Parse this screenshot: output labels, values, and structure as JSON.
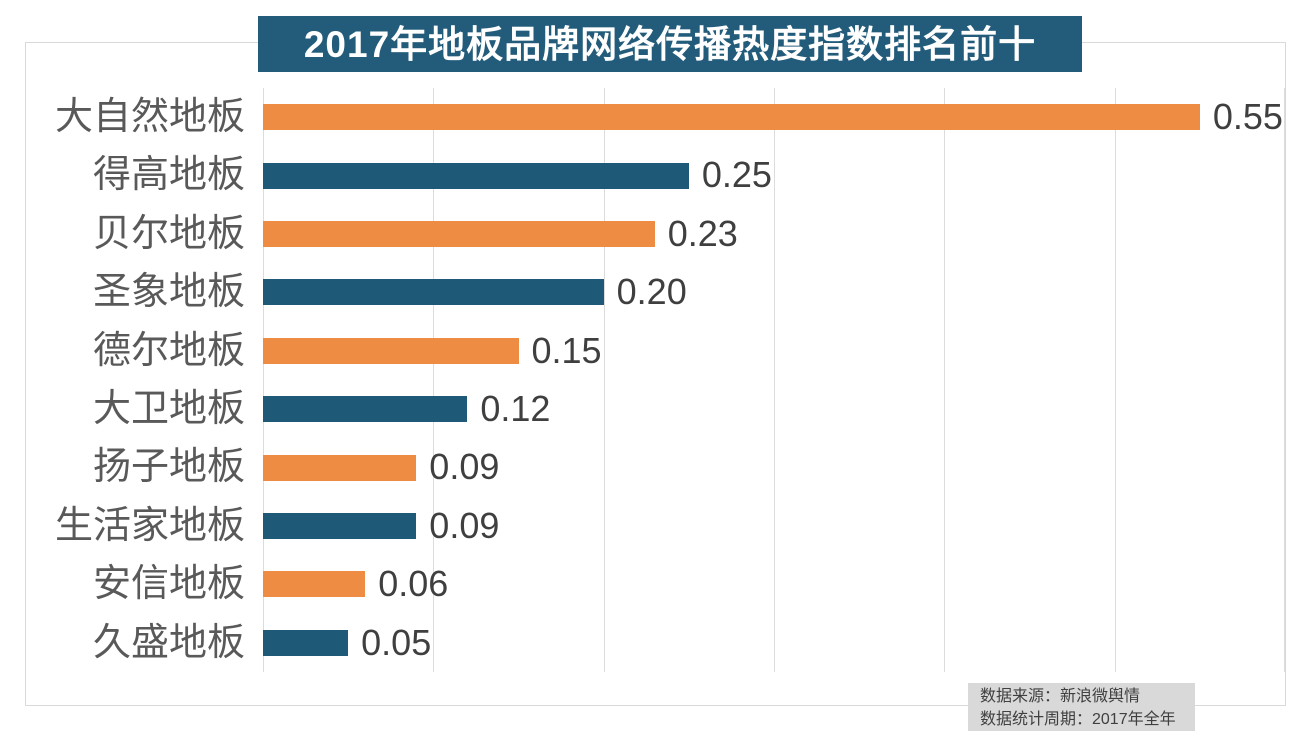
{
  "title": {
    "text": "2017年地板品牌网络传播热度指数排名前十",
    "bg_color": "#235c7b",
    "text_color": "#ffffff"
  },
  "source": {
    "line1": "数据来源：新浪微舆情",
    "line2": "数据统计周期：2017年全年",
    "bg_color": "#d9d9d9",
    "text_color": "#404040"
  },
  "colors": {
    "bar_orange": "#ef8c44",
    "bar_blue": "#1e5978",
    "gridline": "#dcdcdc",
    "frame_border": "#d9d9d9",
    "category_label": "#595959",
    "value_label": "#3f3f3f"
  },
  "chart_data": {
    "type": "bar",
    "orientation": "horizontal",
    "title": "2017年地板品牌网络传播热度指数排名前十",
    "categories": [
      "大自然地板",
      "得高地板",
      "贝尔地板",
      "圣象地板",
      "德尔地板",
      "大卫地板",
      "扬子地板",
      "生活家地板",
      "安信地板",
      "久盛地板"
    ],
    "values": [
      0.55,
      0.25,
      0.23,
      0.2,
      0.15,
      0.12,
      0.09,
      0.09,
      0.06,
      0.05
    ],
    "value_labels": [
      "0.55",
      "0.25",
      "0.23",
      "0.20",
      "0.15",
      "0.12",
      "0.09",
      "0.09",
      "0.06",
      "0.05"
    ],
    "bar_color_sequence": [
      "orange",
      "blue",
      "orange",
      "blue",
      "orange",
      "blue",
      "orange",
      "blue",
      "orange",
      "blue"
    ],
    "xlabel": "",
    "ylabel": "",
    "xlim": [
      0,
      0.6
    ],
    "grid_step": 0.1,
    "grid": "vertical-only",
    "x_tick_labels_visible": false,
    "legend": "none",
    "annotations": [
      "数据来源：新浪微舆情",
      "数据统计周期：2017年全年"
    ]
  }
}
